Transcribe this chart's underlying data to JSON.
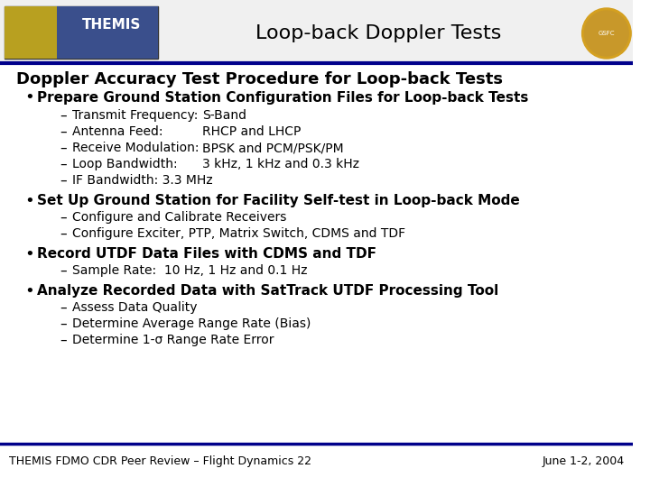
{
  "title_header": "Loop-back Doppler Tests",
  "section_title": "Doppler Accuracy Test Procedure for Loop-back Tests",
  "background_color": "#ffffff",
  "header_line_color": "#00008B",
  "footer_line_color": "#00008B",
  "footer_left": "THEMIS FDMO CDR Peer Review – Flight Dynamics 22",
  "footer_right": "June 1-2, 2004",
  "bullet1": "Prepare Ground Station Configuration Files for Loop-back Tests",
  "bullet1_subs": [
    [
      "Transmit Frequency:",
      "S-Band"
    ],
    [
      "Antenna Feed:",
      "RHCP and LHCP"
    ],
    [
      "Receive Modulation:",
      "BPSK and PCM/PSK/PM"
    ],
    [
      "Loop Bandwidth:",
      "3 kHz, 1 kHz and 0.3 kHz"
    ],
    [
      "IF Bandwidth: 3.3 MHz",
      ""
    ]
  ],
  "bullet2": "Set Up Ground Station for Facility Self-test in Loop-back Mode",
  "bullet2_subs": [
    "Configure and Calibrate Receivers",
    "Configure Exciter, PTP, Matrix Switch, CDMS and TDF"
  ],
  "bullet3": "Record UTDF Data Files with CDMS and TDF",
  "bullet3_subs": [
    "Sample Rate:  10 Hz, 1 Hz and 0.1 Hz"
  ],
  "bullet4": "Analyze Recorded Data with SatTrack UTDF Processing Tool",
  "bullet4_subs": [
    "Assess Data Quality",
    "Determine Average Range Rate (Bias)",
    "Determine 1-σ Range Rate Error"
  ],
  "header_bg": "#ffffff",
  "title_color": "#000000",
  "text_color": "#000000",
  "themis_box_color": "#4169b0"
}
